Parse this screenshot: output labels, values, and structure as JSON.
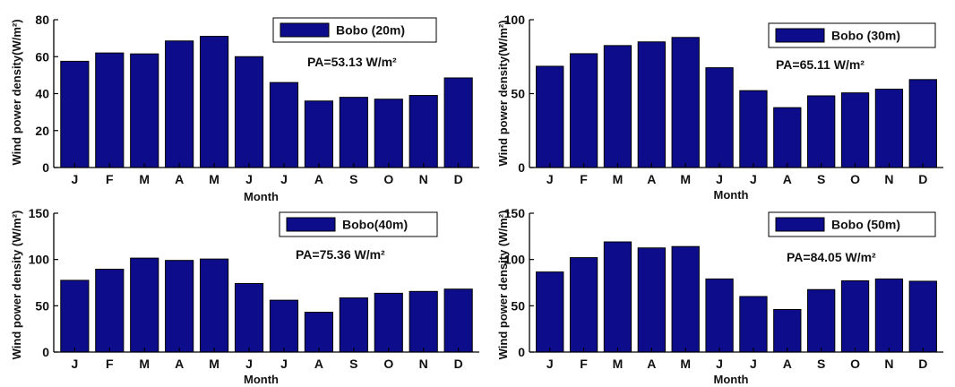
{
  "chart_data": [
    {
      "type": "bar",
      "categories": [
        "J",
        "F",
        "M",
        "A",
        "M",
        "J",
        "J",
        "A",
        "S",
        "O",
        "N",
        "D"
      ],
      "series": [
        {
          "name": "Bobo (20m)",
          "values": [
            57.5,
            62,
            61.5,
            68.5,
            71,
            60,
            46,
            36,
            38,
            37,
            39,
            48.5
          ]
        }
      ],
      "ylabel": "Wind power density(W/m²)",
      "xlabel": "Month",
      "ylim": [
        0,
        80
      ],
      "yticks": [
        0,
        20,
        40,
        60,
        80
      ],
      "annotation": "PA=53.13 W/m²",
      "legend_position": "top-right",
      "bar_color": "#0d0d8c"
    },
    {
      "type": "bar",
      "categories": [
        "J",
        "F",
        "M",
        "A",
        "M",
        "J",
        "J",
        "A",
        "S",
        "O",
        "N",
        "D"
      ],
      "series": [
        {
          "name": "Bobo (30m)",
          "values": [
            68.5,
            77,
            82.5,
            85,
            88,
            67.5,
            52,
            40.5,
            48.5,
            50.5,
            53,
            59.5
          ]
        }
      ],
      "ylabel": "Wind power density(W/m²)",
      "xlabel": "Month",
      "ylim": [
        0,
        100
      ],
      "yticks": [
        0,
        50,
        100
      ],
      "annotation": "PA=65.11 W/m²",
      "legend_position": "top-right",
      "bar_color": "#0d0d8c"
    },
    {
      "type": "bar",
      "categories": [
        "J",
        "F",
        "M",
        "A",
        "M",
        "J",
        "J",
        "A",
        "S",
        "O",
        "N",
        "D"
      ],
      "series": [
        {
          "name": "Bobo(40m)",
          "values": [
            77.5,
            89.5,
            101.5,
            99,
            100.5,
            74,
            56,
            43,
            58.5,
            63.5,
            65.5,
            68
          ]
        }
      ],
      "ylabel": "Wind power density (W/m²)",
      "xlabel": "Month",
      "ylim": [
        0,
        150
      ],
      "yticks": [
        0,
        50,
        100,
        150
      ],
      "annotation": "PA=75.36 W/m²",
      "legend_position": "top-right",
      "bar_color": "#0d0d8c"
    },
    {
      "type": "bar",
      "categories": [
        "J",
        "F",
        "M",
        "A",
        "M",
        "J",
        "J",
        "A",
        "S",
        "O",
        "N",
        "D"
      ],
      "series": [
        {
          "name": "Bobo (50m)",
          "values": [
            86.5,
            102,
            119,
            112.5,
            114,
            79,
            60,
            46,
            67.5,
            77,
            79,
            76.5
          ]
        }
      ],
      "ylabel": "Wind power density (W/m²)",
      "xlabel": "Month",
      "ylim": [
        0,
        150
      ],
      "yticks": [
        0,
        50,
        100,
        150
      ],
      "annotation": "PA=84.05 W/m²",
      "legend_position": "top-right",
      "bar_color": "#0d0d8c"
    }
  ]
}
